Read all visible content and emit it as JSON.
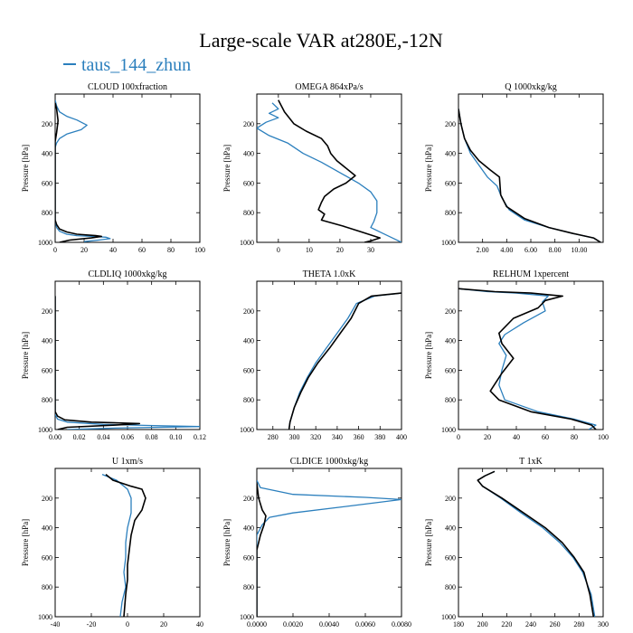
{
  "title": "Large-scale VAR at280E,-12N",
  "legend": {
    "label": "taus_144_zhun",
    "color": "#2b7fbd"
  },
  "colors": {
    "series_blue": "#2b7fbd",
    "series_black": "#000000"
  },
  "chart_data": [
    {
      "type": "line",
      "title": "CLOUD 100xfraction",
      "ylabel": "Pressure [hPa]",
      "xlim": [
        0,
        100
      ],
      "ylim": [
        1000,
        0
      ],
      "xticks": [
        0,
        20,
        40,
        60,
        80,
        100
      ],
      "xtick_labels": [
        "0",
        "20",
        "40",
        "60",
        "80",
        "100"
      ],
      "yticks": [
        200,
        400,
        600,
        800,
        1000
      ],
      "ytick_labels": [
        "200",
        "400",
        "600",
        "800",
        "1000"
      ],
      "series": [
        {
          "color": "#2b7fbd",
          "x": [
            0,
            1,
            3,
            8,
            15,
            22,
            18,
            8,
            3,
            1,
            0,
            0,
            0,
            0,
            1,
            3,
            8,
            15,
            25,
            35,
            38,
            30,
            20
          ],
          "y": [
            40,
            80,
            120,
            150,
            175,
            210,
            240,
            270,
            300,
            330,
            360,
            500,
            700,
            850,
            900,
            925,
            945,
            955,
            960,
            965,
            975,
            985,
            995
          ]
        },
        {
          "color": "#000000",
          "x": [
            0,
            1,
            2,
            1,
            0,
            0,
            0,
            0,
            1,
            3,
            8,
            15,
            28,
            32,
            25,
            10,
            3
          ],
          "y": [
            60,
            100,
            180,
            260,
            320,
            500,
            700,
            850,
            880,
            910,
            930,
            945,
            955,
            960,
            970,
            985,
            1000
          ]
        }
      ]
    },
    {
      "type": "line",
      "title": "OMEGA  864xPa/s",
      "ylabel": "Pressure [hPa]",
      "xlim": [
        -7,
        40
      ],
      "ylim": [
        1000,
        0
      ],
      "xticks": [
        0,
        10,
        20,
        30
      ],
      "xtick_labels": [
        "0",
        "10",
        "20",
        "30"
      ],
      "yticks": [
        200,
        400,
        600,
        800,
        1000
      ],
      "ytick_labels": [
        "200",
        "400",
        "600",
        "800",
        "1000"
      ],
      "series": [
        {
          "color": "#2b7fbd",
          "x": [
            -2,
            0,
            -3,
            0,
            -4,
            -7,
            -3,
            3,
            8,
            14,
            20,
            26,
            30,
            32,
            32,
            31,
            30,
            34,
            38,
            40
          ],
          "y": [
            60,
            100,
            130,
            160,
            190,
            230,
            280,
            330,
            400,
            460,
            530,
            600,
            660,
            720,
            800,
            860,
            900,
            940,
            980,
            1000
          ]
        },
        {
          "color": "#000000",
          "x": [
            0,
            2,
            5,
            9,
            14,
            16,
            17,
            19,
            25,
            22,
            18,
            15,
            14,
            13,
            15,
            14,
            21,
            27,
            33,
            30,
            28
          ],
          "y": [
            40,
            120,
            200,
            250,
            300,
            350,
            400,
            450,
            550,
            600,
            640,
            690,
            730,
            780,
            810,
            850,
            890,
            930,
            970,
            990,
            1000
          ]
        }
      ]
    },
    {
      "type": "line",
      "title": "Q  1000xkg/kg",
      "ylabel": "Pressure [hPa]",
      "xlim": [
        0,
        12
      ],
      "ylim": [
        1000,
        0
      ],
      "xticks": [
        2,
        4,
        6,
        8,
        10
      ],
      "xtick_labels": [
        "2.00",
        "4.00",
        "6.00",
        "8.00",
        "10.00"
      ],
      "yticks": [
        200,
        400,
        600,
        800,
        1000
      ],
      "ytick_labels": [
        "200",
        "400",
        "600",
        "800",
        "1000"
      ],
      "series": [
        {
          "color": "#2b7fbd",
          "x": [
            0,
            0.2,
            0.5,
            1.0,
            1.7,
            2.4,
            3.2,
            3.6,
            4.2,
            5.5,
            7.5,
            9.5,
            11.2,
            11.8
          ],
          "y": [
            100,
            200,
            300,
            400,
            480,
            560,
            620,
            700,
            780,
            850,
            900,
            940,
            970,
            1000
          ]
        },
        {
          "color": "#000000",
          "x": [
            0,
            0.2,
            0.5,
            1.0,
            1.7,
            2.6,
            3.4,
            3.5,
            4.0,
            5.5,
            7.5,
            9.5,
            11.2,
            11.8
          ],
          "y": [
            100,
            200,
            300,
            380,
            450,
            510,
            560,
            680,
            760,
            840,
            900,
            940,
            970,
            1000
          ]
        }
      ]
    },
    {
      "type": "line",
      "title": "CLDLIQ  1000xkg/kg",
      "ylabel": "Pressure [hPa]",
      "xlim": [
        0,
        0.12
      ],
      "ylim": [
        1000,
        0
      ],
      "xticks": [
        0,
        0.02,
        0.04,
        0.06,
        0.08,
        0.1,
        0.12
      ],
      "xtick_labels": [
        "0.00",
        "0.02",
        "0.04",
        "0.06",
        "0.08",
        "0.10",
        "0.12"
      ],
      "yticks": [
        200,
        400,
        600,
        800,
        1000
      ],
      "ytick_labels": [
        "200",
        "400",
        "600",
        "800",
        "1000"
      ],
      "series": [
        {
          "color": "#2b7fbd",
          "x": [
            0,
            0,
            0.002,
            0.01,
            0.04,
            0.09,
            0.12,
            0.05,
            0.01
          ],
          "y": [
            100,
            900,
            930,
            950,
            965,
            975,
            980,
            990,
            1000
          ]
        },
        {
          "color": "#000000",
          "x": [
            0,
            0,
            0.002,
            0.008,
            0.03,
            0.07,
            0.05,
            0.01,
            0.002
          ],
          "y": [
            100,
            880,
            910,
            935,
            950,
            960,
            970,
            985,
            1000
          ]
        }
      ]
    },
    {
      "type": "line",
      "title": "THETA  1.0xK",
      "ylabel": "",
      "xlim": [
        265,
        400
      ],
      "ylim": [
        1000,
        0
      ],
      "xticks": [
        280,
        300,
        320,
        340,
        360,
        380,
        400
      ],
      "xtick_labels": [
        "280",
        "300",
        "320",
        "340",
        "360",
        "380",
        "400"
      ],
      "yticks": [
        200,
        400,
        600,
        800,
        1000
      ],
      "ytick_labels": [
        "200",
        "400",
        "600",
        "800",
        "1000"
      ],
      "series": [
        {
          "color": "#2b7fbd",
          "x": [
            400,
            375,
            358,
            350,
            340,
            330,
            320,
            312,
            305,
            300,
            296,
            295
          ],
          "y": [
            80,
            100,
            150,
            250,
            350,
            450,
            550,
            650,
            750,
            850,
            950,
            1000
          ]
        },
        {
          "color": "#000000",
          "x": [
            400,
            372,
            360,
            353,
            343,
            333,
            322,
            313,
            306,
            300,
            296,
            295
          ],
          "y": [
            80,
            100,
            150,
            250,
            350,
            450,
            550,
            650,
            750,
            850,
            950,
            1000
          ]
        }
      ]
    },
    {
      "type": "line",
      "title": "RELHUM  1xpercent",
      "ylabel": "Pressure [hPa]",
      "xlim": [
        0,
        100
      ],
      "ylim": [
        1000,
        0
      ],
      "xticks": [
        0,
        20,
        40,
        60,
        80,
        100
      ],
      "xtick_labels": [
        "0",
        "20",
        "40",
        "60",
        "80",
        "100"
      ],
      "yticks": [
        200,
        400,
        600,
        800,
        1000
      ],
      "ytick_labels": [
        "200",
        "400",
        "600",
        "800",
        "1000"
      ],
      "series": [
        {
          "color": "#2b7fbd",
          "x": [
            0,
            20,
            40,
            62,
            58,
            60,
            45,
            32,
            28,
            33,
            30,
            28,
            32,
            55,
            80,
            95,
            90
          ],
          "y": [
            50,
            70,
            80,
            100,
            140,
            200,
            280,
            360,
            420,
            500,
            600,
            700,
            800,
            880,
            930,
            970,
            1000
          ]
        },
        {
          "color": "#000000",
          "x": [
            0,
            25,
            50,
            72,
            60,
            55,
            38,
            28,
            30,
            38,
            30,
            22,
            28,
            50,
            78,
            92,
            95
          ],
          "y": [
            50,
            70,
            80,
            100,
            130,
            180,
            250,
            350,
            420,
            520,
            620,
            740,
            800,
            880,
            930,
            970,
            1000
          ]
        }
      ]
    },
    {
      "type": "line",
      "title": "U  1xm/s",
      "ylabel": "Pressure [hPa]",
      "xlim": [
        -40,
        40
      ],
      "ylim": [
        1000,
        0
      ],
      "xticks": [
        -40,
        -20,
        0,
        20,
        40
      ],
      "xtick_labels": [
        "-40",
        "-20",
        "0",
        "20",
        "40"
      ],
      "yticks": [
        200,
        400,
        600,
        800,
        1000
      ],
      "ytick_labels": [
        "200",
        "400",
        "600",
        "800",
        "1000"
      ],
      "series": [
        {
          "color": "#2b7fbd",
          "x": [
            -14,
            -6,
            0,
            2,
            2,
            0,
            -1,
            -1,
            -2,
            -1,
            -3,
            -4
          ],
          "y": [
            40,
            80,
            140,
            200,
            300,
            400,
            500,
            600,
            700,
            800,
            900,
            1000
          ]
        },
        {
          "color": "#000000",
          "x": [
            -12,
            -8,
            2,
            8,
            10,
            8,
            4,
            2,
            1,
            0,
            0,
            -1,
            -2
          ],
          "y": [
            40,
            80,
            120,
            140,
            200,
            280,
            350,
            450,
            550,
            650,
            750,
            850,
            1000
          ]
        }
      ]
    },
    {
      "type": "line",
      "title": "CLDICE  1000xkg/kg",
      "ylabel": "Pressure [hPa]",
      "xlim": [
        0,
        0.008
      ],
      "ylim": [
        1000,
        0
      ],
      "xticks": [
        0,
        0.002,
        0.004,
        0.006,
        0.008
      ],
      "xtick_labels": [
        "0.0000",
        "0.0020",
        "0.0040",
        "0.0060",
        "0.0080"
      ],
      "yticks": [
        200,
        400,
        600,
        800,
        1000
      ],
      "ytick_labels": [
        "200",
        "400",
        "600",
        "800",
        "1000"
      ],
      "series": [
        {
          "color": "#2b7fbd",
          "x": [
            0,
            0.0002,
            0.002,
            0.006,
            0.008,
            0.006,
            0.002,
            0.0007,
            0.0003,
            0,
            0
          ],
          "y": [
            80,
            130,
            175,
            195,
            210,
            240,
            300,
            330,
            380,
            450,
            1000
          ]
        },
        {
          "color": "#000000",
          "x": [
            0,
            0.0001,
            0.0003,
            0.0005,
            0.0004,
            0.0002,
            0,
            0
          ],
          "y": [
            100,
            200,
            280,
            320,
            380,
            450,
            550,
            1000
          ]
        }
      ]
    },
    {
      "type": "line",
      "title": "T  1xK",
      "ylabel": "Pressure [hPa]",
      "xlim": [
        180,
        300
      ],
      "ylim": [
        1000,
        0
      ],
      "xticks": [
        180,
        200,
        220,
        240,
        260,
        280,
        300
      ],
      "xtick_labels": [
        "180",
        "200",
        "220",
        "240",
        "260",
        "280",
        "300"
      ],
      "yticks": [
        200,
        400,
        600,
        800,
        1000
      ],
      "ytick_labels": [
        "200",
        "400",
        "600",
        "800",
        "1000"
      ],
      "series": [
        {
          "color": "#2b7fbd",
          "x": [
            210,
            202,
            196,
            200,
            215,
            232,
            250,
            264,
            275,
            283,
            290,
            293
          ],
          "y": [
            20,
            50,
            80,
            120,
            200,
            300,
            400,
            500,
            600,
            700,
            850,
            1000
          ]
        },
        {
          "color": "#000000",
          "x": [
            210,
            202,
            196,
            200,
            216,
            234,
            252,
            266,
            276,
            284,
            289,
            292
          ],
          "y": [
            20,
            50,
            80,
            120,
            200,
            300,
            400,
            500,
            600,
            700,
            850,
            1000
          ]
        }
      ]
    }
  ]
}
